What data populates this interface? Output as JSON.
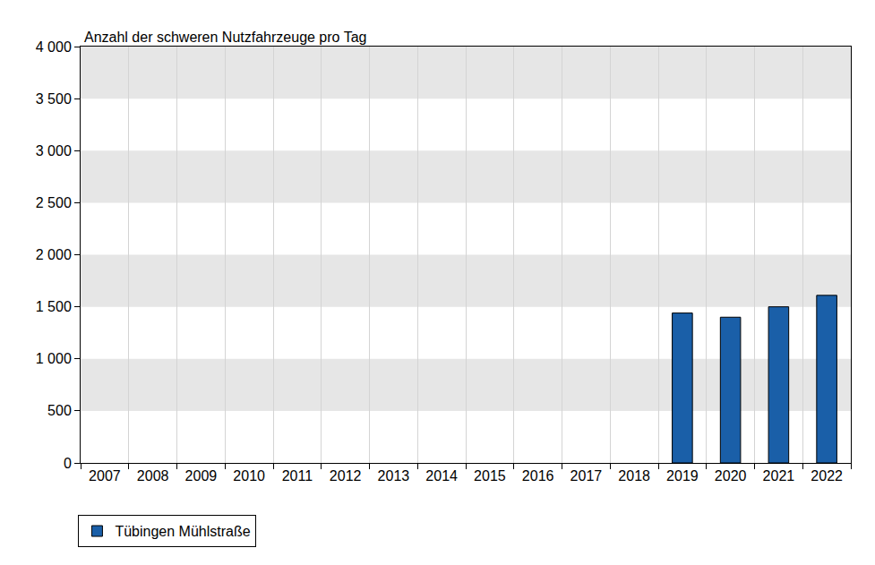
{
  "chart_data": {
    "type": "bar",
    "title": "Anzahl der schweren Nutzfahrzeuge pro Tag",
    "categories": [
      "2007",
      "2008",
      "2009",
      "2010",
      "2011",
      "2012",
      "2013",
      "2014",
      "2015",
      "2016",
      "2017",
      "2018",
      "2019",
      "2020",
      "2021",
      "2022"
    ],
    "series": [
      {
        "name": "Tübingen Mühlstraße",
        "color": "#1a5fa8",
        "values": [
          null,
          null,
          null,
          null,
          null,
          null,
          null,
          null,
          null,
          null,
          null,
          null,
          1440,
          1400,
          1500,
          1610
        ]
      }
    ],
    "ylim": [
      0,
      4000
    ],
    "yticks": [
      0,
      500,
      {
        "value": 1000,
        "label": "1 000"
      },
      {
        "value": 1500,
        "label": "1 500"
      },
      {
        "value": 2000,
        "label": "2 000"
      },
      {
        "value": 2500,
        "label": "2 500"
      },
      {
        "value": 3000,
        "label": "3 000"
      },
      {
        "value": 3500,
        "label": "3 500"
      },
      {
        "value": 4000,
        "label": "4 000"
      }
    ],
    "grid": true,
    "legend": "bottom"
  }
}
